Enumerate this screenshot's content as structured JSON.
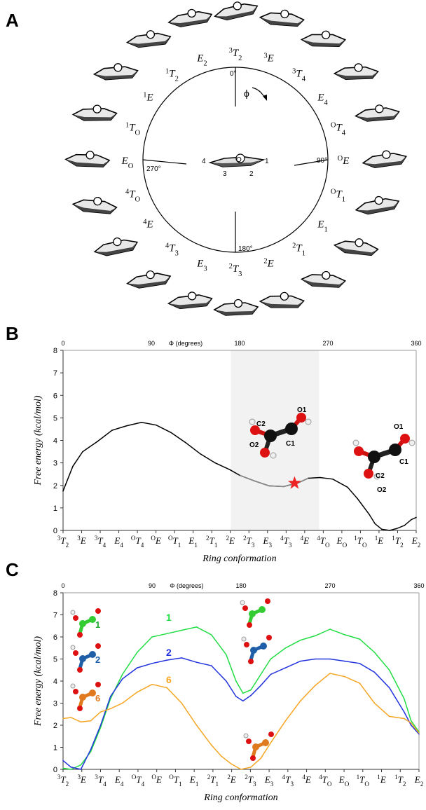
{
  "panels": {
    "a": "A",
    "b": "B",
    "c": "C"
  },
  "wheel": {
    "angles": [
      "0°",
      "90°",
      "180°",
      "270°"
    ],
    "phi": "ϕ",
    "center_numbers": [
      "4",
      "3",
      "2",
      "1"
    ],
    "center_atom": "O",
    "labels": [
      {
        "sup": "3",
        "main": "T",
        "sub": "2"
      },
      {
        "sup": "3",
        "main": "E",
        "sub": ""
      },
      {
        "sup": "3",
        "main": "T",
        "sub": "4"
      },
      {
        "sup": "",
        "main": "E",
        "sub": "4"
      },
      {
        "sup": "O",
        "main": "T",
        "sub": "4"
      },
      {
        "sup": "O",
        "main": "E",
        "sub": ""
      },
      {
        "sup": "O",
        "main": "T",
        "sub": "1"
      },
      {
        "sup": "",
        "main": "E",
        "sub": "1"
      },
      {
        "sup": "2",
        "main": "T",
        "sub": "1"
      },
      {
        "sup": "2",
        "main": "E",
        "sub": ""
      },
      {
        "sup": "2",
        "main": "T",
        "sub": "3"
      },
      {
        "sup": "",
        "main": "E",
        "sub": "3"
      },
      {
        "sup": "4",
        "main": "T",
        "sub": "3"
      },
      {
        "sup": "4",
        "main": "E",
        "sub": ""
      },
      {
        "sup": "4",
        "main": "T",
        "sub": "O"
      },
      {
        "sup": "",
        "main": "E",
        "sub": "O"
      },
      {
        "sup": "1",
        "main": "T",
        "sub": "O"
      },
      {
        "sup": "1",
        "main": "E",
        "sub": ""
      },
      {
        "sup": "1",
        "main": "T",
        "sub": "2"
      },
      {
        "sup": "",
        "main": "E",
        "sub": "2"
      }
    ]
  },
  "conformations": [
    {
      "sup": "3",
      "main": "T",
      "sub": "2"
    },
    {
      "sup": "3",
      "main": "E",
      "sub": ""
    },
    {
      "sup": "3",
      "main": "T",
      "sub": "4"
    },
    {
      "sup": "",
      "main": "E",
      "sub": "4"
    },
    {
      "sup": "O",
      "main": "T",
      "sub": "4"
    },
    {
      "sup": "O",
      "main": "E",
      "sub": ""
    },
    {
      "sup": "O",
      "main": "T",
      "sub": "1"
    },
    {
      "sup": "",
      "main": "E",
      "sub": "1"
    },
    {
      "sup": "2",
      "main": "T",
      "sub": "1"
    },
    {
      "sup": "2",
      "main": "E",
      "sub": ""
    },
    {
      "sup": "2",
      "main": "T",
      "sub": "3"
    },
    {
      "sup": "",
      "main": "E",
      "sub": "3"
    },
    {
      "sup": "4",
      "main": "T",
      "sub": "3"
    },
    {
      "sup": "4",
      "main": "E",
      "sub": ""
    },
    {
      "sup": "4",
      "main": "T",
      "sub": "O"
    },
    {
      "sup": "",
      "main": "E",
      "sub": "O"
    },
    {
      "sup": "1",
      "main": "T",
      "sub": "O"
    },
    {
      "sup": "1",
      "main": "E",
      "sub": ""
    },
    {
      "sup": "1",
      "main": "T",
      "sub": "2"
    },
    {
      "sup": "",
      "main": "E",
      "sub": "2"
    }
  ],
  "chart_data": [
    {
      "type": "line",
      "top_axis_label": "Φ (degrees)",
      "top_ticks": [
        0,
        90,
        180,
        270,
        360
      ],
      "xlabel": "Ring conformation",
      "ylabel": "Free energy (kcal/mol)",
      "xlim": [
        0,
        360
      ],
      "ylim": [
        0,
        8
      ],
      "yticks": [
        0,
        1,
        2,
        3,
        4,
        5,
        6,
        7,
        8
      ],
      "shaded_range": [
        171,
        261
      ],
      "marker": {
        "phi": 236,
        "y": 2.1,
        "color": "#ee2222"
      },
      "molecule_labels": [
        {
          "atoms": [
            "C2",
            "O1",
            "O2",
            "C1"
          ]
        },
        {
          "atoms": [
            "O1",
            "C1",
            "C2",
            "O2"
          ]
        }
      ],
      "series": [
        {
          "color": "#000000",
          "x": [
            0,
            10,
            20,
            35,
            50,
            65,
            80,
            95,
            110,
            125,
            140,
            155,
            170,
            180,
            195,
            210,
            225,
            240,
            250,
            262,
            275,
            290,
            300,
            312,
            318,
            325,
            333,
            340,
            348,
            355,
            360
          ],
          "y": [
            1.75,
            2.85,
            3.5,
            3.95,
            4.45,
            4.65,
            4.8,
            4.68,
            4.35,
            3.9,
            3.4,
            3.0,
            2.7,
            2.45,
            2.2,
            1.98,
            1.95,
            2.12,
            2.32,
            2.35,
            2.28,
            1.92,
            1.42,
            0.72,
            0.3,
            0.05,
            0.0,
            0.08,
            0.22,
            0.48,
            0.58
          ]
        }
      ]
    },
    {
      "type": "line",
      "top_axis_label": "Φ (degrees)",
      "top_ticks": [
        0,
        90,
        180,
        270,
        360
      ],
      "xlabel": "Ring conformation",
      "ylabel": "Free energy (kcal/mol)",
      "xlim": [
        0,
        360
      ],
      "ylim": [
        0,
        8
      ],
      "yticks": [
        0,
        1,
        2,
        3,
        4,
        5,
        6,
        7,
        8
      ],
      "series": [
        {
          "name": "1",
          "color": "#22dd44",
          "x": [
            0,
            8,
            18,
            28,
            38,
            48,
            60,
            75,
            90,
            105,
            120,
            135,
            150,
            165,
            175,
            182,
            190,
            200,
            210,
            225,
            240,
            255,
            270,
            285,
            300,
            315,
            330,
            345,
            352,
            360
          ],
          "y": [
            0.05,
            0.0,
            0.2,
            0.8,
            1.9,
            3.2,
            4.3,
            5.3,
            6.0,
            6.15,
            6.3,
            6.45,
            6.1,
            5.2,
            4.0,
            3.45,
            3.6,
            4.3,
            5.0,
            5.5,
            5.85,
            6.05,
            6.35,
            6.1,
            5.9,
            5.3,
            4.5,
            3.2,
            2.2,
            1.7
          ]
        },
        {
          "name": "2",
          "color": "#2233dd",
          "x": [
            0,
            8,
            18,
            28,
            38,
            48,
            60,
            75,
            90,
            105,
            120,
            135,
            150,
            165,
            175,
            182,
            190,
            200,
            210,
            225,
            240,
            255,
            270,
            285,
            300,
            315,
            330,
            345,
            352,
            360
          ],
          "y": [
            0.4,
            0.1,
            0.0,
            0.9,
            2.0,
            3.3,
            4.1,
            4.6,
            4.8,
            4.95,
            5.05,
            4.85,
            4.7,
            4.0,
            3.3,
            3.1,
            3.35,
            3.8,
            4.3,
            4.6,
            4.9,
            5.0,
            5.0,
            4.9,
            4.8,
            4.4,
            3.7,
            2.6,
            2.0,
            1.6
          ]
        },
        {
          "name": "6",
          "color": "#f5a623",
          "x": [
            0,
            8,
            18,
            28,
            38,
            48,
            60,
            75,
            90,
            105,
            120,
            135,
            150,
            160,
            170,
            180,
            190,
            200,
            210,
            225,
            240,
            255,
            270,
            285,
            300,
            315,
            330,
            345,
            352,
            360
          ],
          "y": [
            2.3,
            2.35,
            2.15,
            2.2,
            2.6,
            2.75,
            3.0,
            3.5,
            3.85,
            3.7,
            3.0,
            2.0,
            1.1,
            0.6,
            0.25,
            0.0,
            0.1,
            0.5,
            1.2,
            2.2,
            3.1,
            3.8,
            4.35,
            4.2,
            3.9,
            3.0,
            2.4,
            2.3,
            2.1,
            1.65
          ]
        }
      ]
    }
  ]
}
